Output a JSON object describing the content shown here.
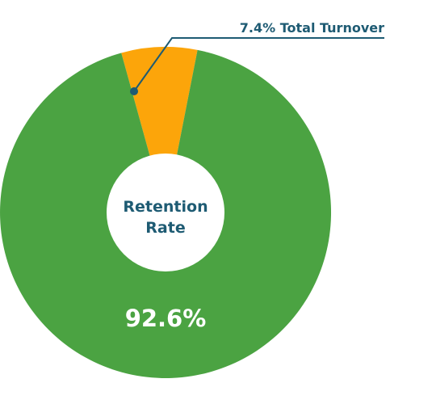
{
  "chart_data": {
    "type": "pie",
    "donut": true,
    "title": "",
    "center_label": [
      "Retention",
      "Rate"
    ],
    "slices": [
      {
        "label": "Retention Rate",
        "value": 92.6,
        "display": "92.6%",
        "color": "#4ba342"
      },
      {
        "label": "Total Turnover",
        "value": 7.4,
        "display": "7.4% Total Turnover",
        "color": "#fca50a"
      }
    ]
  },
  "colors": {
    "center_text": "#1e5b73",
    "callout_line": "#1e5b73",
    "value_text": "#ffffff",
    "hole": "#ffffff"
  }
}
